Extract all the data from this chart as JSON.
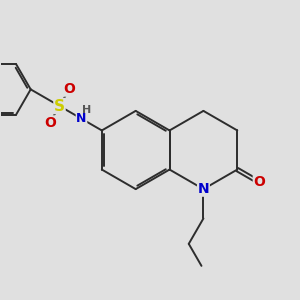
{
  "bg_color": "#e0e0e0",
  "bond_color": "#2d2d2d",
  "bond_width": 1.4,
  "atom_colors": {
    "N": "#0000cc",
    "O": "#cc0000",
    "S": "#cccc00",
    "H": "#555555",
    "C": "#2d2d2d"
  },
  "font_size_atom": 9,
  "fig_size": [
    3.0,
    3.0
  ],
  "dpi": 100
}
